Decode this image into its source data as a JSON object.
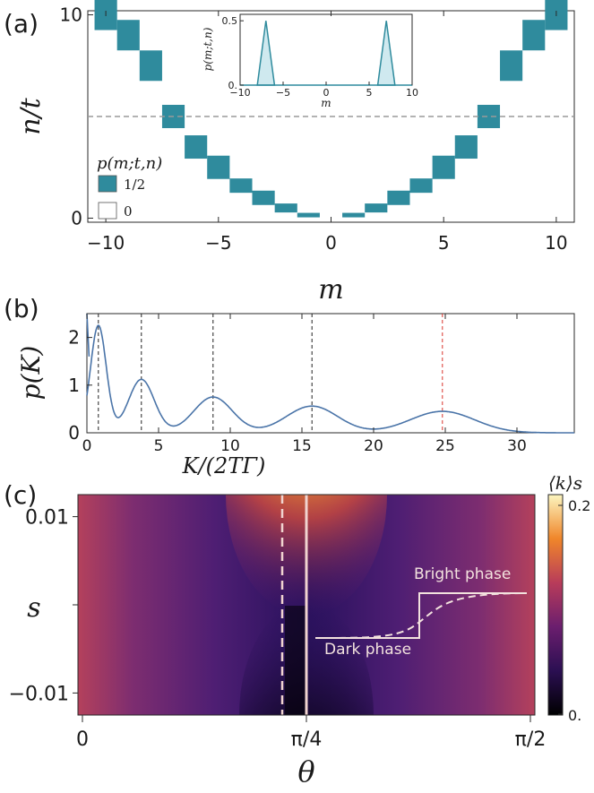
{
  "panels": {
    "a_label": "(a)",
    "b_label": "(b)",
    "c_label": "(c)"
  },
  "chart_data": [
    {
      "id": "a",
      "type": "heatmap",
      "title": "",
      "xlabel": "m",
      "ylabel": "n/t",
      "xlim": [
        -10.8,
        10.8
      ],
      "ylim": [
        -0.2,
        10.2
      ],
      "xticks": [
        "-10",
        "-5",
        "0",
        "5",
        "10"
      ],
      "yticks": [
        "0",
        "10"
      ],
      "dashed_hline_y": 5,
      "cell_value": "1/2",
      "cells": [
        {
          "m": -10,
          "n": 10
        },
        {
          "m": -9,
          "n": 9
        },
        {
          "m": -8,
          "n": 7.5
        },
        {
          "m": -7,
          "n": 5
        },
        {
          "m": -6,
          "n": 3.5
        },
        {
          "m": -5,
          "n": 2.5
        },
        {
          "m": -4,
          "n": 1.6
        },
        {
          "m": -3,
          "n": 1
        },
        {
          "m": -2,
          "n": 0.5
        },
        {
          "m": -1,
          "n": 0.15
        },
        {
          "m": 1,
          "n": 0.15
        },
        {
          "m": 2,
          "n": 0.5
        },
        {
          "m": 3,
          "n": 1
        },
        {
          "m": 4,
          "n": 1.6
        },
        {
          "m": 5,
          "n": 2.5
        },
        {
          "m": 6,
          "n": 3.5
        },
        {
          "m": 7,
          "n": 5
        },
        {
          "m": 8,
          "n": 7.5
        },
        {
          "m": 9,
          "n": 9
        },
        {
          "m": 10,
          "n": 10
        }
      ],
      "legend": {
        "title": "p(m;t,n)",
        "entries": [
          {
            "label": "1/2",
            "color": "#2f8b9d"
          },
          {
            "label": "0",
            "color": "#ffffff"
          }
        ]
      },
      "inset": {
        "type": "area",
        "ylabel": "p(m;t,n)",
        "xlabel": "m",
        "xlim": [
          -10,
          10
        ],
        "ylim": [
          0,
          0.55
        ],
        "xticks": [
          "-10",
          "-5",
          "0",
          "5",
          "10"
        ],
        "yticks": [
          "0.",
          "0.5"
        ],
        "peaks": [
          {
            "m": -7,
            "p": 0.5
          },
          {
            "m": 7,
            "p": 0.5
          }
        ]
      }
    },
    {
      "id": "b",
      "type": "line",
      "xlabel": "K/(2TΓ)",
      "ylabel": "p(K)",
      "xlim": [
        0,
        34
      ],
      "ylim": [
        0,
        2.5
      ],
      "xticks": [
        "0",
        "5",
        "10",
        "15",
        "20",
        "25",
        "30"
      ],
      "yticks": [
        "0",
        "1",
        "2"
      ],
      "peaks": [
        {
          "center": 0.8,
          "height": 2.25,
          "width": 0.55
        },
        {
          "center": 3.8,
          "height": 1.12,
          "width": 0.9
        },
        {
          "center": 8.8,
          "height": 0.75,
          "width": 1.35
        },
        {
          "center": 15.7,
          "height": 0.56,
          "width": 1.8
        },
        {
          "center": 24.8,
          "height": 0.45,
          "width": 2.25
        }
      ],
      "vlines": [
        {
          "x": 0.8,
          "color": "#222222"
        },
        {
          "x": 3.8,
          "color": "#222222"
        },
        {
          "x": 8.8,
          "color": "#222222"
        },
        {
          "x": 15.7,
          "color": "#222222"
        },
        {
          "x": 24.8,
          "color": "#d9342b"
        }
      ],
      "line_color": "#4a74a8"
    },
    {
      "id": "c",
      "type": "heatmap",
      "xlabel": "θ",
      "ylabel": "s",
      "xlim": [
        0,
        1.5708
      ],
      "ylim": [
        -0.0125,
        0.0125
      ],
      "xticks": [
        "0",
        "π/4",
        "π/2"
      ],
      "yticks": [
        "0.01",
        "-0.01"
      ],
      "colorbar": {
        "label": "⟨k⟩s",
        "ticks": [
          "0.2",
          "0."
        ],
        "range": [
          0,
          0.22
        ]
      },
      "annotations": [
        "Bright phase",
        "Dark phase"
      ]
    }
  ]
}
